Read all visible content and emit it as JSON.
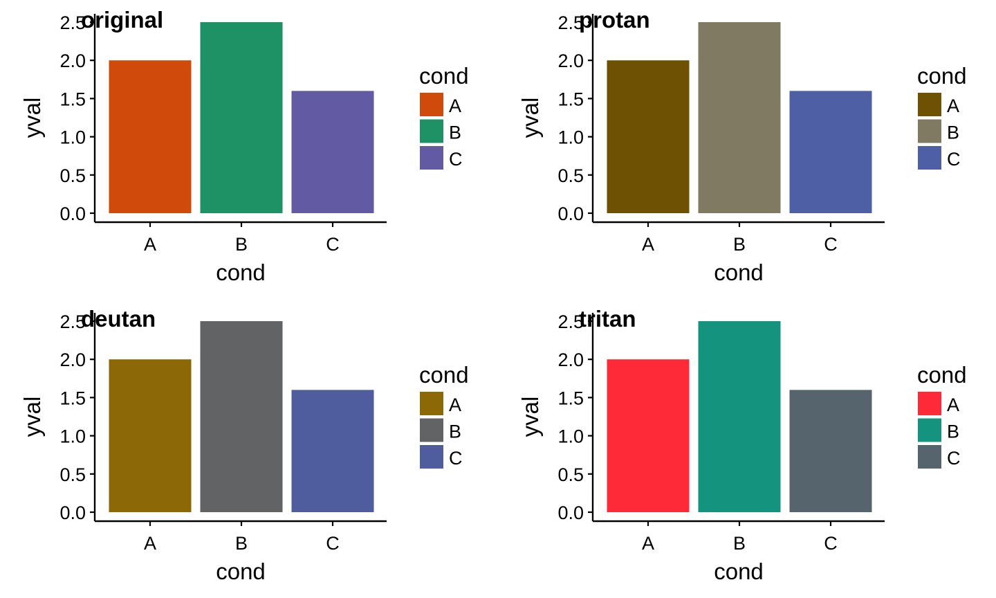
{
  "chart_data": [
    {
      "type": "bar",
      "title": "original",
      "xlabel": "cond",
      "ylabel": "yval",
      "categories": [
        "A",
        "B",
        "C"
      ],
      "values": [
        2.0,
        2.5,
        1.6
      ],
      "colors": [
        "#D04A0B",
        "#1E9165",
        "#625AA3"
      ],
      "ylim": [
        0,
        2.5
      ],
      "yticks": [
        "0.0",
        "0.5",
        "1.0",
        "1.5",
        "2.0",
        "2.5"
      ],
      "legend": {
        "title": "cond",
        "entries": [
          "A",
          "B",
          "C"
        ],
        "placement": "right"
      },
      "grid": false
    },
    {
      "type": "bar",
      "title": "protan",
      "xlabel": "cond",
      "ylabel": "yval",
      "categories": [
        "A",
        "B",
        "C"
      ],
      "values": [
        2.0,
        2.5,
        1.6
      ],
      "colors": [
        "#6E5103",
        "#807A62",
        "#4F5FA5"
      ],
      "ylim": [
        0,
        2.5
      ],
      "yticks": [
        "0.0",
        "0.5",
        "1.0",
        "1.5",
        "2.0",
        "2.5"
      ],
      "legend": {
        "title": "cond",
        "entries": [
          "A",
          "B",
          "C"
        ],
        "placement": "right"
      },
      "grid": false
    },
    {
      "type": "bar",
      "title": "deutan",
      "xlabel": "cond",
      "ylabel": "yval",
      "categories": [
        "A",
        "B",
        "C"
      ],
      "values": [
        2.0,
        2.5,
        1.6
      ],
      "colors": [
        "#8C6906",
        "#626364",
        "#4F5D9F"
      ],
      "ylim": [
        0,
        2.5
      ],
      "yticks": [
        "0.0",
        "0.5",
        "1.0",
        "1.5",
        "2.0",
        "2.5"
      ],
      "legend": {
        "title": "cond",
        "entries": [
          "A",
          "B",
          "C"
        ],
        "placement": "right"
      },
      "grid": false
    },
    {
      "type": "bar",
      "title": "tritan",
      "xlabel": "cond",
      "ylabel": "yval",
      "categories": [
        "A",
        "B",
        "C"
      ],
      "values": [
        2.0,
        2.5,
        1.6
      ],
      "colors": [
        "#FF2A38",
        "#14937F",
        "#56646E"
      ],
      "ylim": [
        0,
        2.5
      ],
      "yticks": [
        "0.0",
        "0.5",
        "1.0",
        "1.5",
        "2.0",
        "2.5"
      ],
      "legend": {
        "title": "cond",
        "entries": [
          "A",
          "B",
          "C"
        ],
        "placement": "right"
      },
      "grid": false
    }
  ]
}
